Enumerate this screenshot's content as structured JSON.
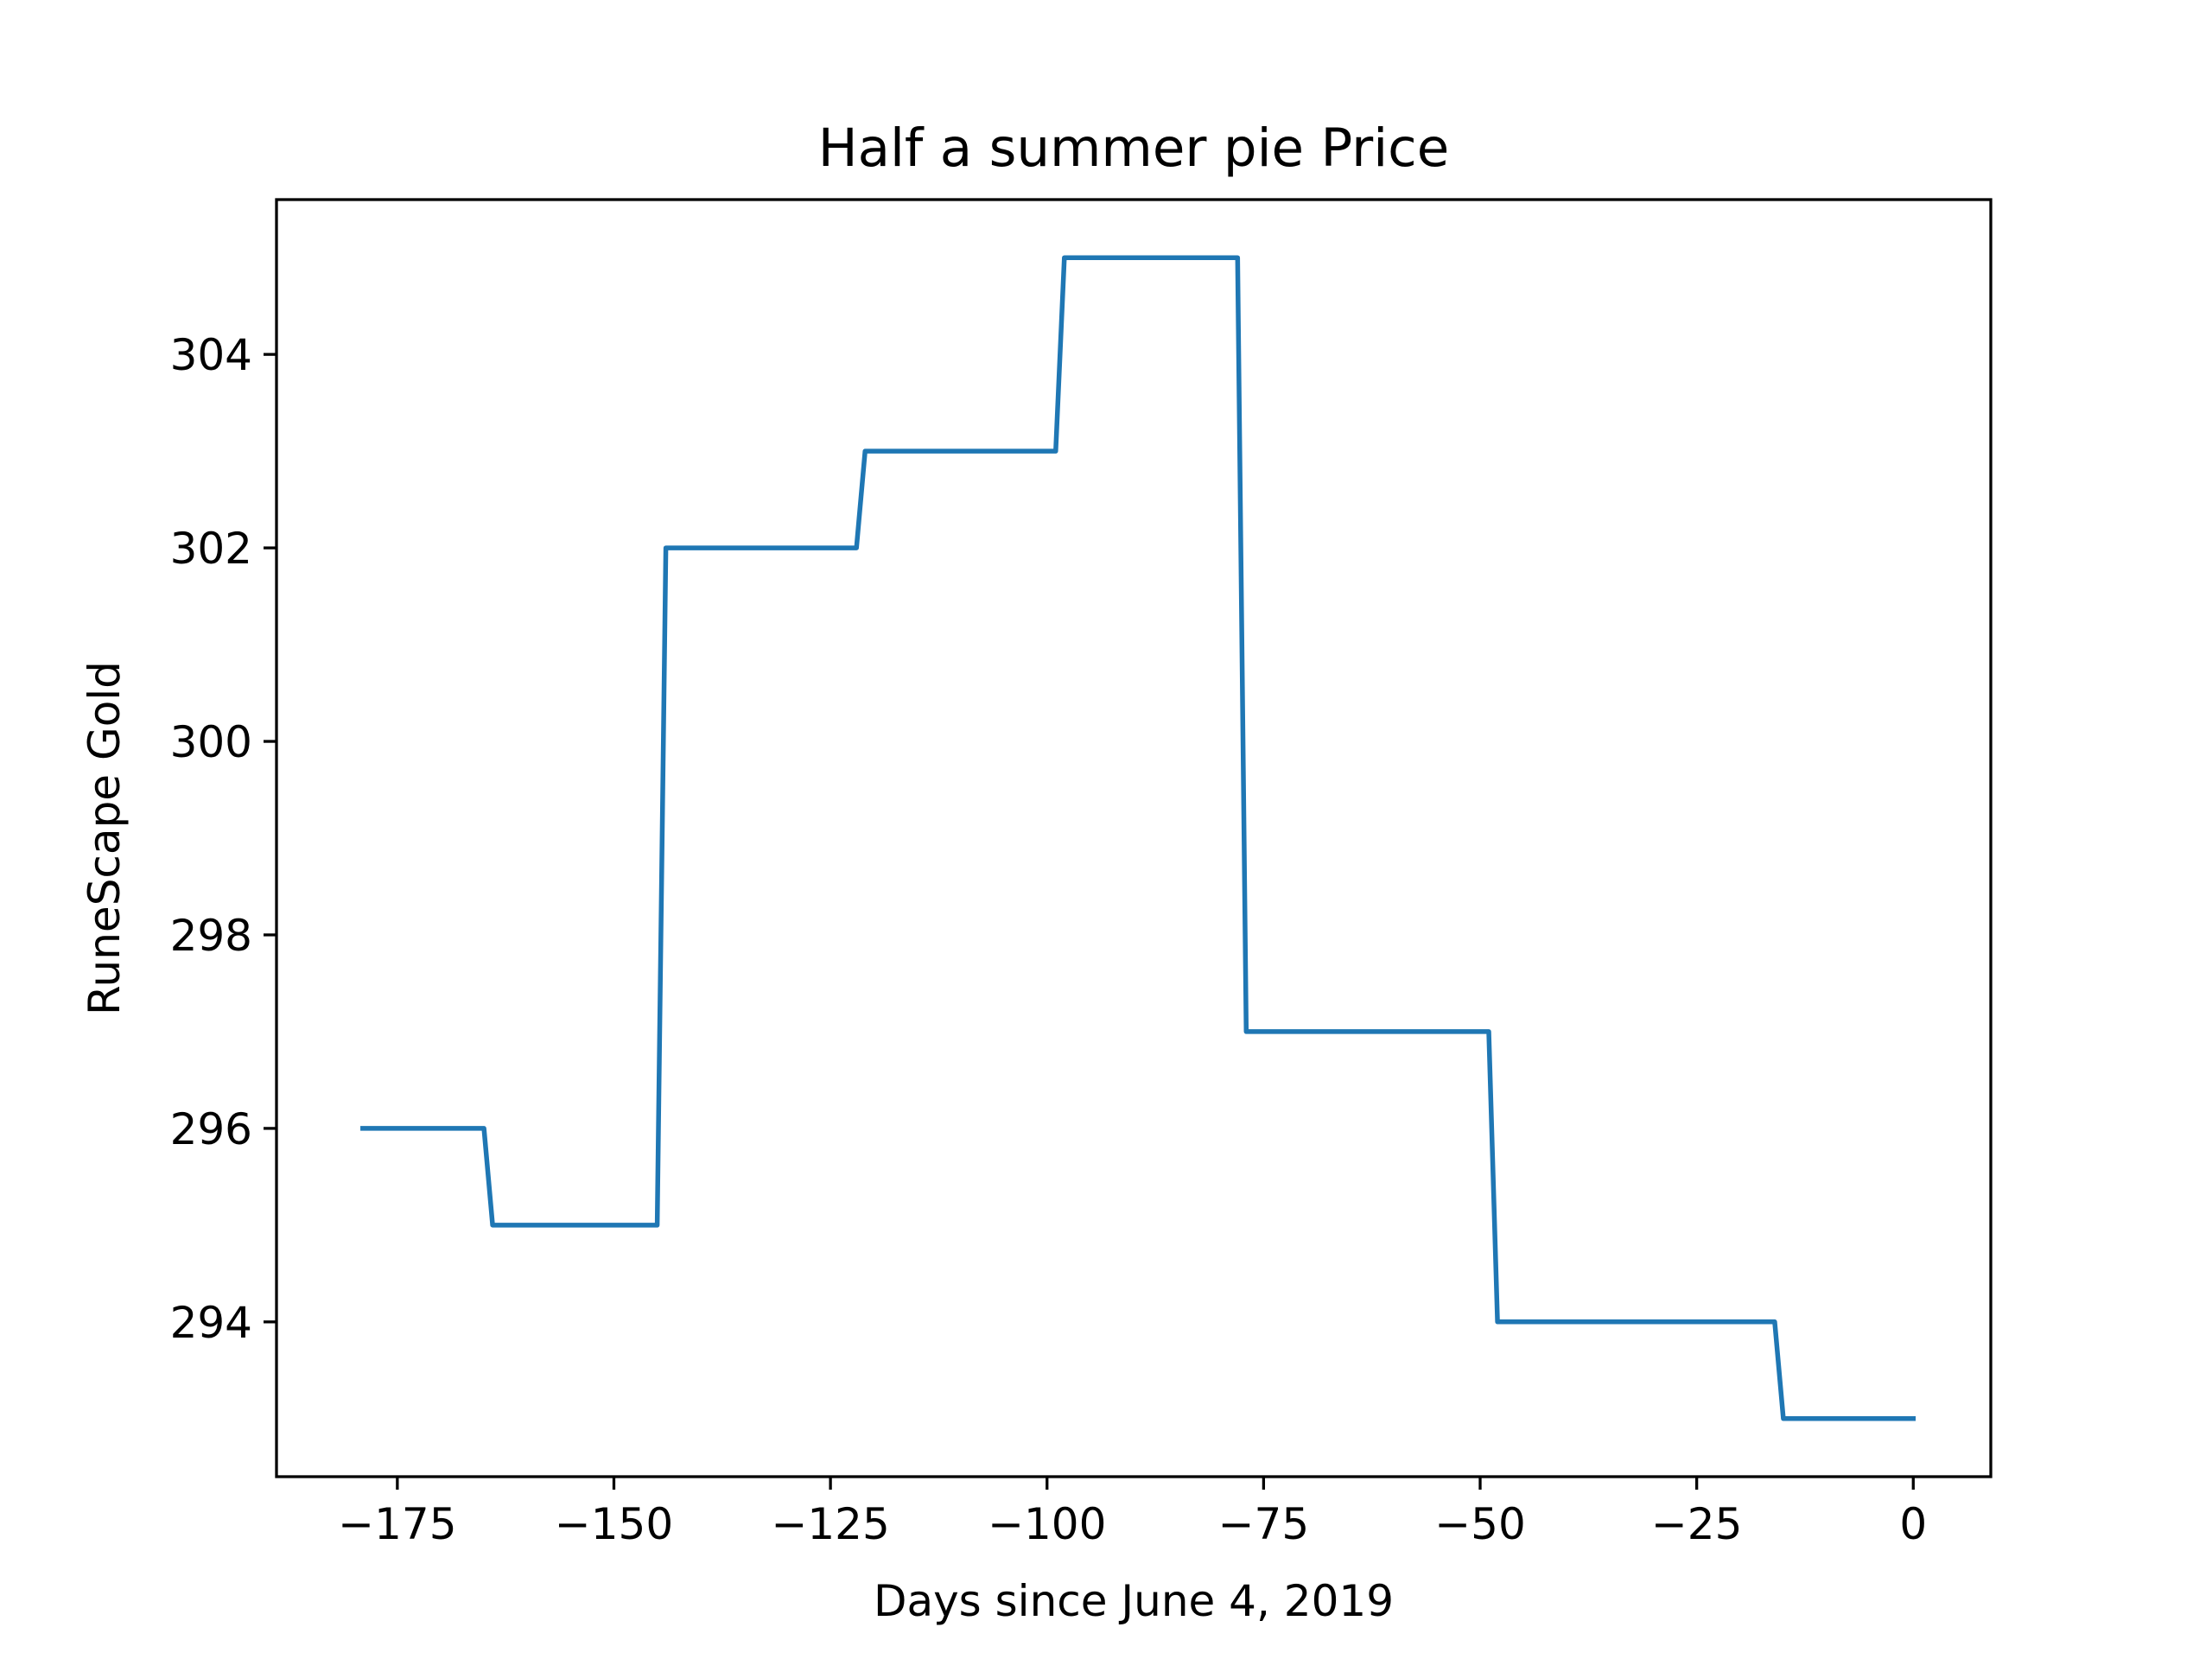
{
  "chart_data": {
    "type": "line",
    "title": "Half a summer pie Price",
    "xlabel": "Days since June 4, 2019",
    "ylabel": "RuneScape Gold",
    "xlim": [
      -188.95,
      8.95
    ],
    "ylim": [
      292.4,
      305.6
    ],
    "xticks": [
      -175,
      -150,
      -125,
      -100,
      -75,
      -50,
      -25,
      0
    ],
    "xtick_labels": [
      "−175",
      "−150",
      "−125",
      "−100",
      "−75",
      "−50",
      "−25",
      "0"
    ],
    "yticks": [
      294,
      296,
      298,
      300,
      302,
      304
    ],
    "ytick_labels": [
      "294",
      "296",
      "298",
      "300",
      "302",
      "304"
    ],
    "grid": false,
    "series_color": "#1f77b4",
    "series": [
      {
        "x": [
          -179,
          -165,
          -164,
          -145,
          -144,
          -122,
          -121,
          -99,
          -98,
          -78,
          -77,
          -49,
          -48,
          -16,
          -15,
          0
        ],
        "y": [
          296,
          296,
          295,
          295,
          302,
          302,
          303,
          303,
          305,
          305,
          297,
          297,
          294,
          294,
          293,
          293
        ]
      }
    ]
  }
}
